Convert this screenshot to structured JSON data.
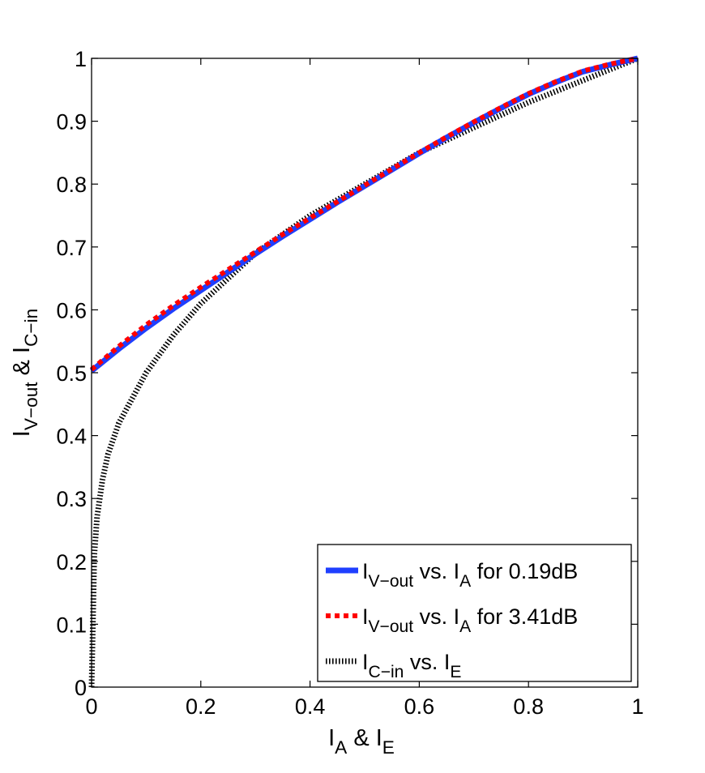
{
  "chart_data": {
    "type": "line",
    "xlabel": {
      "parts": [
        {
          "text": "I",
          "sub": false
        },
        {
          "text": "A",
          "sub": true
        },
        {
          "text": " & I",
          "sub": false
        },
        {
          "text": "E",
          "sub": true
        }
      ]
    },
    "ylabel": {
      "parts": [
        {
          "text": "I",
          "sub": false
        },
        {
          "text": "V−out",
          "sub": true
        },
        {
          "text": " & I",
          "sub": false
        },
        {
          "text": "C−in",
          "sub": true
        }
      ]
    },
    "xlim": [
      0,
      1
    ],
    "ylim": [
      0,
      1
    ],
    "xticks": [
      {
        "value": 0,
        "label": "0"
      },
      {
        "value": 0.2,
        "label": "0.2"
      },
      {
        "value": 0.4,
        "label": "0.4"
      },
      {
        "value": 0.6,
        "label": "0.6"
      },
      {
        "value": 0.8,
        "label": "0.8"
      },
      {
        "value": 1,
        "label": "1"
      }
    ],
    "yticks": [
      {
        "value": 0,
        "label": "0"
      },
      {
        "value": 0.1,
        "label": "0.1"
      },
      {
        "value": 0.2,
        "label": "0.2"
      },
      {
        "value": 0.3,
        "label": "0.3"
      },
      {
        "value": 0.4,
        "label": "0.4"
      },
      {
        "value": 0.5,
        "label": "0.5"
      },
      {
        "value": 0.6,
        "label": "0.6"
      },
      {
        "value": 0.7,
        "label": "0.7"
      },
      {
        "value": 0.8,
        "label": "0.8"
      },
      {
        "value": 0.9,
        "label": "0.9"
      },
      {
        "value": 1,
        "label": "1"
      }
    ],
    "grid": false,
    "legend_position": "bottom-right",
    "series": [
      {
        "name": "I_V-out vs. I_A for 0.19dB",
        "legend_parts": [
          {
            "text": "I",
            "sub": false
          },
          {
            "text": "V−out",
            "sub": true
          },
          {
            "text": " vs. I",
            "sub": false
          },
          {
            "text": "A",
            "sub": true
          },
          {
            "text": " for 0.19dB",
            "sub": false
          }
        ],
        "color": "#1f3fff",
        "style": "solid",
        "x": [
          0,
          0.05,
          0.1,
          0.15,
          0.2,
          0.25,
          0.3,
          0.35,
          0.4,
          0.45,
          0.5,
          0.55,
          0.6,
          0.65,
          0.7,
          0.75,
          0.8,
          0.85,
          0.9,
          0.95,
          1
        ],
        "y": [
          0.503,
          0.538,
          0.571,
          0.602,
          0.631,
          0.66,
          0.689,
          0.717,
          0.744,
          0.771,
          0.797,
          0.823,
          0.849,
          0.874,
          0.898,
          0.921,
          0.943,
          0.962,
          0.979,
          0.99,
          1.0
        ]
      },
      {
        "name": "I_V-out vs. I_A for 3.41dB",
        "legend_parts": [
          {
            "text": "I",
            "sub": false
          },
          {
            "text": "V−out",
            "sub": true
          },
          {
            "text": " vs. I",
            "sub": false
          },
          {
            "text": "A",
            "sub": true
          },
          {
            "text": " for 3.41dB",
            "sub": false
          }
        ],
        "color": "#ff0000",
        "style": "dotted",
        "x": [
          0,
          0.05,
          0.1,
          0.15,
          0.2,
          0.25,
          0.3,
          0.35,
          0.4,
          0.45,
          0.5,
          0.55,
          0.6,
          0.65,
          0.7,
          0.75,
          0.8,
          0.85,
          0.9,
          0.95,
          1
        ],
        "y": [
          0.505,
          0.542,
          0.576,
          0.607,
          0.636,
          0.664,
          0.692,
          0.72,
          0.746,
          0.772,
          0.798,
          0.824,
          0.85,
          0.875,
          0.899,
          0.922,
          0.944,
          0.963,
          0.98,
          0.991,
          1.0
        ]
      },
      {
        "name": "I_C-in vs. I_E",
        "legend_parts": [
          {
            "text": "I",
            "sub": false
          },
          {
            "text": "C−in",
            "sub": true
          },
          {
            "text": " vs. I",
            "sub": false
          },
          {
            "text": "E",
            "sub": true
          }
        ],
        "color": "#000000",
        "style": "hatched",
        "x": [
          0,
          0.005,
          0.01,
          0.02,
          0.03,
          0.05,
          0.075,
          0.1,
          0.15,
          0.2,
          0.25,
          0.3,
          0.35,
          0.4,
          0.5,
          0.6,
          0.7,
          0.8,
          0.9,
          1
        ],
        "y": [
          0,
          0.21,
          0.27,
          0.33,
          0.37,
          0.42,
          0.46,
          0.5,
          0.56,
          0.61,
          0.65,
          0.69,
          0.72,
          0.75,
          0.8,
          0.85,
          0.89,
          0.93,
          0.965,
          1.0
        ]
      }
    ]
  }
}
